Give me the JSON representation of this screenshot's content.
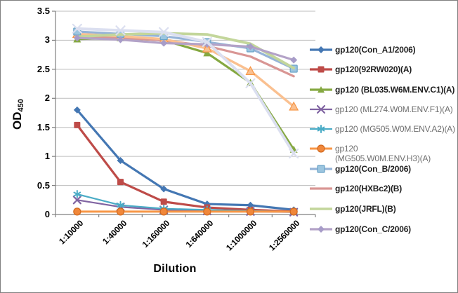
{
  "chart": {
    "x_title": "Dilution",
    "y_title_main": "OD",
    "y_title_sub": "450"
  },
  "colors": {
    "axis": "#808080",
    "gridline": "#bdbdbd",
    "figure_border": "#7f7f7f",
    "legend_text_bold": "#1f1f1f",
    "legend_text_gray": "#6e6e6e"
  },
  "chart_data": {
    "type": "line",
    "title": "",
    "xlabel": "Dilution",
    "ylabel": "OD450",
    "ylim": [
      0,
      3.5
    ],
    "y_tick_step": 0.5,
    "y_tick_labels": [
      "0",
      "0.5",
      "1",
      "1.5",
      "2",
      "2.5",
      "3",
      "3.5"
    ],
    "grid": true,
    "legend_position": "right",
    "categories": [
      "1:10000",
      "1:40000",
      "1:160000",
      "1:640000",
      "1:1000000",
      "1:2560000"
    ],
    "series": [
      {
        "id": "con-a1",
        "name": "gp120(Con_A1/2006)",
        "color": "#4477b3",
        "marker": "diamond",
        "marker_fill": "#4477b3",
        "marker_size": 5,
        "line_width": 3.2,
        "in_legend": true,
        "legend_text_style": "bold",
        "values": [
          1.8,
          0.93,
          0.44,
          0.18,
          0.16,
          0.08
        ]
      },
      {
        "id": "92rw020",
        "name": "gp120(92RW020)(A)",
        "color": "#be4b48",
        "marker": "square",
        "marker_fill": "#be4b48",
        "marker_size": 4.5,
        "line_width": 3.2,
        "in_legend": true,
        "legend_text_style": "bold",
        "values": [
          1.54,
          0.56,
          0.22,
          0.12,
          0.08,
          0.05
        ]
      },
      {
        "id": "ml274",
        "name": "gp120 (ML274.W0M.ENV.F1)(A)",
        "color": "#8064a2",
        "marker": "x",
        "marker_size": 5,
        "line_width": 2.2,
        "in_legend": true,
        "legend_text_style": "gray",
        "values": [
          0.25,
          0.13,
          0.08,
          0.06,
          0.05,
          0.04
        ]
      },
      {
        "id": "mg505-a2",
        "name": "gp120 (MG505.W0M.ENV.A2)(A)",
        "color": "#4bacc6",
        "marker": "asterisk",
        "marker_size": 5,
        "line_width": 2.2,
        "in_legend": true,
        "legend_text_style": "gray",
        "values": [
          0.35,
          0.16,
          0.1,
          0.08,
          0.06,
          0.05
        ]
      },
      {
        "id": "mg505-h3",
        "name": "gp120 (MG505.W0M.ENV.H3)(A)",
        "name_lines": [
          "gp120",
          "(MG505.W0M.ENV.H3)(A)"
        ],
        "color": "#f79646",
        "marker": "circle",
        "marker_fill": "#f0873a",
        "marker_stroke": "#d2691e",
        "marker_size": 5,
        "line_width": 3,
        "in_legend": true,
        "legend_text_style": "gray",
        "values": [
          0.05,
          0.05,
          0.05,
          0.05,
          0.05,
          0.05
        ]
      },
      {
        "id": "bl035",
        "name": "gp120 (BL035.W6M.ENV.C1)(A)",
        "color": "#85a841",
        "marker": "triangle",
        "marker_fill": "#85a841",
        "marker_size": 5.5,
        "line_width": 3.2,
        "in_legend": true,
        "legend_text_style": "bold",
        "values": [
          3.02,
          3.04,
          3.0,
          2.78,
          2.27,
          1.12
        ]
      },
      {
        "id": "hxbc2",
        "name": "gp120(HXBc2)(B)",
        "color": "#d99694",
        "marker": "none",
        "marker_size": 0,
        "line_width": 3.2,
        "in_legend": true,
        "legend_text_style": "bold",
        "values": [
          3.08,
          3.04,
          3.0,
          2.9,
          2.72,
          2.38
        ]
      },
      {
        "id": "unlabeled-peach-triangle",
        "name": "",
        "color": "#fac090",
        "marker": "triangle",
        "marker_fill": "#fac090",
        "marker_stroke": "#f79646",
        "marker_size": 6,
        "line_width": 3.4,
        "in_legend": false,
        "legend_text_style": "bold",
        "values": [
          3.11,
          3.07,
          3.02,
          2.86,
          2.47,
          1.86
        ]
      },
      {
        "id": "con-b",
        "name": "gp120(Con_B/2006)",
        "color": "#95b3d7",
        "marker": "square",
        "marker_fill": "#9cc5df",
        "marker_stroke": "#68a2c6",
        "marker_size": 5,
        "line_width": 3.2,
        "in_legend": true,
        "legend_text_style": "bold",
        "values": [
          3.15,
          3.11,
          3.07,
          2.97,
          2.86,
          2.51
        ]
      },
      {
        "id": "jrfl",
        "name": "gp120(JRFL)(B)",
        "color": "#c3d69b",
        "marker": "none",
        "marker_size": 0,
        "line_width": 3.8,
        "in_legend": true,
        "legend_text_style": "bold",
        "values": [
          3.06,
          3.1,
          3.12,
          3.1,
          2.94,
          2.52
        ]
      },
      {
        "id": "con-c",
        "name": "gp120(Con_C/2006)",
        "color": "#b3a2c7",
        "marker": "diamond",
        "marker_fill": "#a79cc8",
        "marker_size": 5,
        "line_width": 3.2,
        "in_legend": true,
        "legend_text_style": "bold",
        "values": [
          3.04,
          3.01,
          2.95,
          2.93,
          2.89,
          2.66
        ]
      },
      {
        "id": "unlabeled-pale-x",
        "name": "",
        "color": "#dbdff0",
        "marker": "x",
        "marker_size": 6,
        "line_width": 4,
        "in_legend": false,
        "legend_text_style": "bold",
        "values": [
          3.2,
          3.17,
          3.14,
          2.97,
          2.26,
          1.05
        ]
      }
    ],
    "legend_order": [
      "con-a1",
      "92rw020",
      "bl035",
      "ml274",
      "mg505-a2",
      "mg505-h3",
      "con-b",
      "hxbc2",
      "jrfl",
      "con-c"
    ]
  }
}
